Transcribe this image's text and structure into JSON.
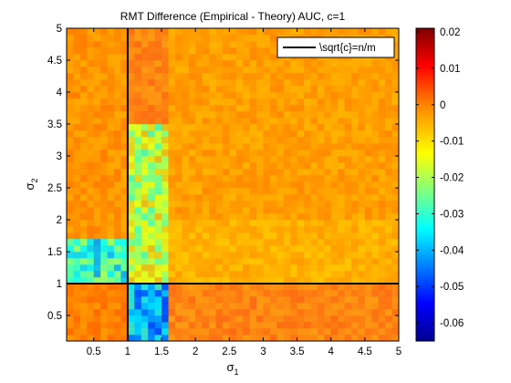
{
  "chart_data": {
    "type": "heatmap",
    "title": "RMT Difference (Empirical - Theory) AUC, c=1",
    "xlabel": {
      "base": "σ",
      "sub": "1"
    },
    "ylabel": {
      "base": "σ",
      "sub": "2"
    },
    "xlim": [
      0.1,
      5
    ],
    "ylim": [
      0.1,
      5
    ],
    "x_ticks": [
      "0.5",
      "1",
      "1.5",
      "2",
      "2.5",
      "3",
      "3.5",
      "4",
      "4.5",
      "5"
    ],
    "y_ticks": [
      "0.5",
      "1",
      "1.5",
      "2",
      "2.5",
      "3",
      "3.5",
      "4",
      "4.5",
      "5"
    ],
    "colorbar": {
      "range": [
        -0.065,
        0.021
      ],
      "ticks": [
        "0.02",
        "0.01",
        "0",
        "-0.01",
        "-0.02",
        "-0.03",
        "-0.04",
        "-0.05",
        "-0.06"
      ],
      "colormap": "jet"
    },
    "reference_lines": [
      {
        "orientation": "vertical",
        "value": 1
      },
      {
        "orientation": "horizontal",
        "value": 1
      }
    ],
    "legend": {
      "location": "top-right",
      "entries": [
        "\\sqrt{c}=n/m"
      ]
    },
    "regions": [
      {
        "x_range": [
          0.1,
          1
        ],
        "y_range": [
          0.1,
          1
        ],
        "value": 0.0
      },
      {
        "x_range": [
          1,
          1.6
        ],
        "y_range": [
          0.1,
          1
        ],
        "value": -0.04
      },
      {
        "x_range": [
          0.1,
          1
        ],
        "y_range": [
          1,
          1.7
        ],
        "value": -0.03
      },
      {
        "x_range": [
          1,
          1.6
        ],
        "y_range": [
          1,
          3.5
        ],
        "value": -0.018
      },
      {
        "x_range": [
          1.6,
          5
        ],
        "y_range": [
          1,
          2
        ],
        "value": -0.005
      },
      {
        "x_range": [
          0.1,
          1
        ],
        "y_range": [
          1.7,
          5
        ],
        "value": -0.002
      },
      {
        "x_range": [
          1.6,
          5
        ],
        "y_range": [
          2,
          5
        ],
        "value": -0.003
      }
    ]
  }
}
